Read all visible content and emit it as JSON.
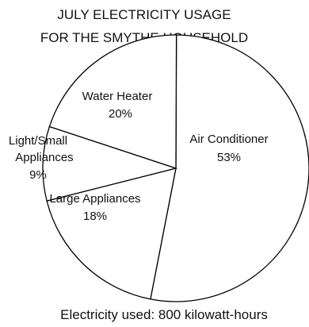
{
  "chart_data": {
    "type": "pie",
    "title": [
      "JULY ELECTRICITY USAGE",
      "FOR THE SMYTHE HOUSEHOLD"
    ],
    "slices": [
      {
        "label": "Air Conditioner",
        "value": 53,
        "value_text": "53%"
      },
      {
        "label": "Large Appliances",
        "value": 18,
        "value_text": "18%"
      },
      {
        "label": "Light/Small Appliances",
        "label_lines": [
          "Light/Small",
          "Appliances"
        ],
        "value": 9,
        "value_text": "9%"
      },
      {
        "label": "Water Heater",
        "value": 20,
        "value_text": "20%"
      }
    ],
    "footer": "Electricity used: 800 kilowatt-hours",
    "fill_color": "#ffffff",
    "stroke_color": "#000000"
  }
}
